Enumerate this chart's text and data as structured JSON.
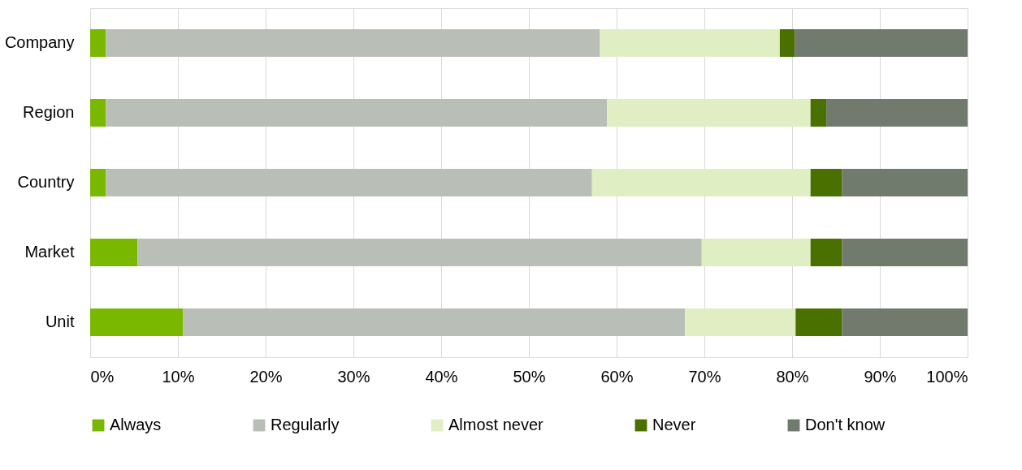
{
  "chart_data": {
    "type": "bar",
    "orientation": "horizontal",
    "stacked": true,
    "categories": [
      "Company",
      "Region",
      "Country",
      "Market",
      "Unit"
    ],
    "series": [
      {
        "name": "Always",
        "color": "#7ab800",
        "values": [
          1.8,
          1.8,
          1.8,
          5.4,
          10.6
        ]
      },
      {
        "name": "Regularly",
        "color": "#b9bfb7",
        "values": [
          56.3,
          57.1,
          55.4,
          64.3,
          57.2
        ]
      },
      {
        "name": "Almost never",
        "color": "#e0eec3",
        "values": [
          20.5,
          23.2,
          24.9,
          12.4,
          12.6
        ]
      },
      {
        "name": "Never",
        "color": "#4a7000",
        "values": [
          1.7,
          1.8,
          3.6,
          3.6,
          5.3
        ]
      },
      {
        "name": "Don't know",
        "color": "#707a6d",
        "values": [
          19.7,
          16.1,
          14.3,
          14.3,
          14.3
        ]
      }
    ],
    "xlim": [
      0,
      100
    ],
    "xticks": [
      {
        "value": 0,
        "label": "0%"
      },
      {
        "value": 10,
        "label": "10%"
      },
      {
        "value": 20,
        "label": "20%"
      },
      {
        "value": 30,
        "label": "30%"
      },
      {
        "value": 40,
        "label": "40%"
      },
      {
        "value": 50,
        "label": "50%"
      },
      {
        "value": 60,
        "label": "60%"
      },
      {
        "value": 70,
        "label": "70%"
      },
      {
        "value": 80,
        "label": "80%"
      },
      {
        "value": 90,
        "label": "90%"
      },
      {
        "value": 100,
        "label": "100%"
      }
    ],
    "grid": "x",
    "legend": "bottom"
  }
}
